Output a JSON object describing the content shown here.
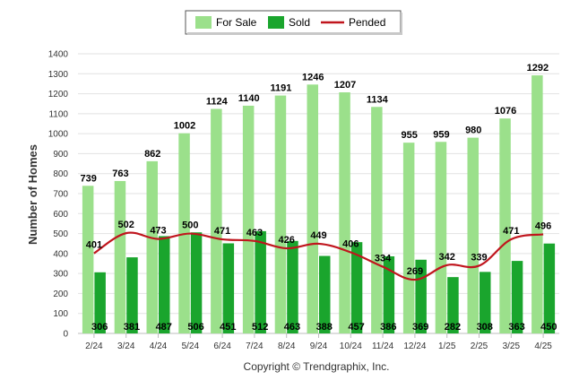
{
  "chart_data": {
    "type": "bar",
    "categories": [
      "2/24",
      "3/24",
      "4/24",
      "5/24",
      "6/24",
      "7/24",
      "8/24",
      "9/24",
      "10/24",
      "11/24",
      "12/24",
      "1/25",
      "2/25",
      "3/25",
      "4/25"
    ],
    "series": [
      {
        "name": "For Sale",
        "kind": "bar",
        "color": "#9be08b",
        "values": [
          739,
          763,
          862,
          1002,
          1124,
          1140,
          1191,
          1246,
          1207,
          1134,
          955,
          959,
          980,
          1076,
          1292
        ]
      },
      {
        "name": "Sold",
        "kind": "bar",
        "color": "#1aa52d",
        "values": [
          306,
          381,
          487,
          506,
          451,
          512,
          463,
          388,
          457,
          386,
          369,
          282,
          308,
          363,
          450
        ]
      },
      {
        "name": "Pended",
        "kind": "line",
        "color": "#c0151d",
        "values": [
          401,
          502,
          473,
          500,
          471,
          463,
          426,
          449,
          406,
          334,
          269,
          342,
          339,
          471,
          496
        ]
      }
    ],
    "ylabel": "Number of Homes",
    "xlabel": "",
    "ylim": [
      0,
      1400
    ],
    "yticks": [
      0,
      100,
      200,
      300,
      400,
      500,
      600,
      700,
      800,
      900,
      1000,
      1100,
      1200,
      1300,
      1400
    ],
    "grid": true,
    "legend_position": "top-center"
  },
  "credit": "Copyright © Trendgraphix, Inc."
}
